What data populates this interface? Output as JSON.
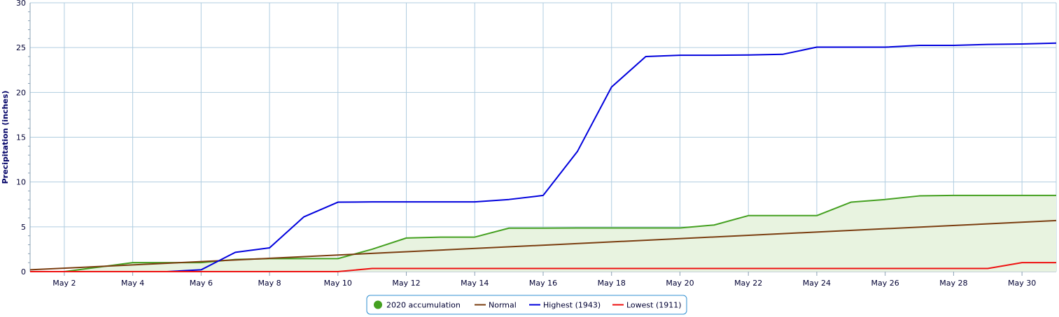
{
  "chart_data": {
    "type": "line",
    "ylabel": "Precipitation (inches)",
    "xlabel": "",
    "ylim": [
      0,
      30
    ],
    "yticks": [
      0,
      5,
      10,
      15,
      20,
      25,
      30
    ],
    "x_range": [
      1,
      31
    ],
    "xticks": [
      {
        "day": 2,
        "label": "May 2"
      },
      {
        "day": 4,
        "label": "May 4"
      },
      {
        "day": 6,
        "label": "May 6"
      },
      {
        "day": 8,
        "label": "May 8"
      },
      {
        "day": 10,
        "label": "May 10"
      },
      {
        "day": 12,
        "label": "May 12"
      },
      {
        "day": 14,
        "label": "May 14"
      },
      {
        "day": 16,
        "label": "May 16"
      },
      {
        "day": 18,
        "label": "May 18"
      },
      {
        "day": 20,
        "label": "May 20"
      },
      {
        "day": 22,
        "label": "May 22"
      },
      {
        "day": 24,
        "label": "May 24"
      },
      {
        "day": 26,
        "label": "May 26"
      },
      {
        "day": 28,
        "label": "May 28"
      },
      {
        "day": 30,
        "label": "May 30"
      }
    ],
    "grid": true,
    "legend_position": "bottom-center",
    "series": [
      {
        "name": "2020 accumulation",
        "color": "#44a020",
        "fill": "#e8f3e0",
        "area": true,
        "marker": "circle",
        "x": [
          1,
          2,
          3,
          4,
          5,
          6,
          7,
          8,
          9,
          10,
          11,
          12,
          13,
          14,
          15,
          16,
          17,
          18,
          19,
          20,
          21,
          22,
          23,
          24,
          25,
          26,
          27,
          28,
          29,
          30,
          31
        ],
        "y": [
          0.0,
          0.0,
          0.5,
          1.0,
          1.0,
          1.0,
          1.35,
          1.45,
          1.45,
          1.45,
          2.5,
          3.75,
          3.85,
          3.85,
          4.85,
          4.85,
          4.87,
          4.87,
          4.87,
          4.87,
          5.2,
          6.25,
          6.25,
          6.25,
          7.75,
          8.05,
          8.45,
          8.5,
          8.5,
          8.5,
          8.5
        ]
      },
      {
        "name": "Normal",
        "color": "#7a3d10",
        "x": [
          1,
          31
        ],
        "y": [
          0.2,
          5.7
        ]
      },
      {
        "name": "Highest (1943)",
        "color": "#0000dd",
        "x": [
          1,
          2,
          3,
          4,
          5,
          6,
          7,
          8,
          9,
          10,
          11,
          12,
          13,
          14,
          15,
          16,
          17,
          18,
          19,
          20,
          21,
          22,
          23,
          24,
          25,
          26,
          27,
          28,
          29,
          30,
          31
        ],
        "y": [
          0,
          0,
          0,
          0,
          0,
          0.2,
          2.15,
          2.65,
          6.1,
          7.75,
          7.78,
          7.78,
          7.78,
          7.78,
          8.05,
          8.5,
          13.4,
          20.6,
          24.0,
          24.15,
          24.15,
          24.18,
          24.25,
          25.05,
          25.05,
          25.05,
          25.25,
          25.25,
          25.35,
          25.4,
          25.5
        ]
      },
      {
        "name": "Lowest (1911)",
        "color": "#ee1111",
        "x": [
          1,
          2,
          3,
          4,
          5,
          6,
          7,
          8,
          9,
          10,
          11,
          12,
          13,
          14,
          15,
          16,
          17,
          18,
          19,
          20,
          21,
          22,
          23,
          24,
          25,
          26,
          27,
          28,
          29,
          30,
          31
        ],
        "y": [
          0,
          0,
          0,
          0,
          0,
          0,
          0,
          0,
          0,
          0,
          0.35,
          0.35,
          0.35,
          0.35,
          0.35,
          0.35,
          0.35,
          0.35,
          0.35,
          0.35,
          0.35,
          0.35,
          0.35,
          0.35,
          0.35,
          0.35,
          0.35,
          0.35,
          0.35,
          1.0,
          1.0
        ]
      }
    ]
  },
  "colors": {
    "grid": "#b0cde0",
    "axis": "#8aa0b4",
    "legend_border": "#2f8fd0"
  }
}
